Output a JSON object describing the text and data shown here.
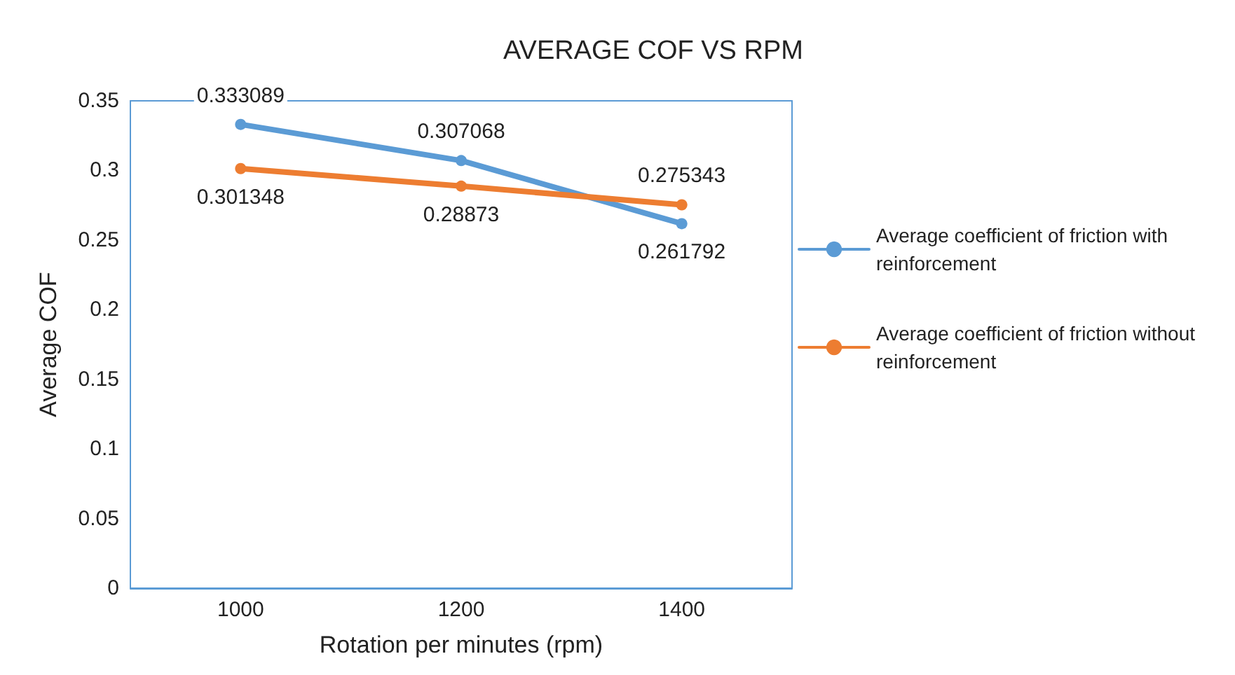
{
  "chart_data": {
    "type": "line",
    "title": "AVERAGE COF VS RPM",
    "xlabel": "Rotation per minutes (rpm)",
    "ylabel": "Average COF",
    "categories": [
      "1000",
      "1200",
      "1400"
    ],
    "series": [
      {
        "name": "Average coefficient of friction with reinforcement",
        "color": "#5b9bd5",
        "values": [
          0.333089,
          0.307068,
          0.261792
        ]
      },
      {
        "name": "Average coefficient of friction without reinforcement",
        "color": "#ed7d31",
        "values": [
          0.301348,
          0.28873,
          0.275343
        ]
      }
    ],
    "ylim": [
      0,
      0.35
    ],
    "yticks": [
      0,
      0.05,
      0.1,
      0.15,
      0.2,
      0.25,
      0.3,
      0.35
    ],
    "grid": false,
    "legend": "right",
    "marker": "circle",
    "line_style": "solid",
    "data_labels": true
  }
}
